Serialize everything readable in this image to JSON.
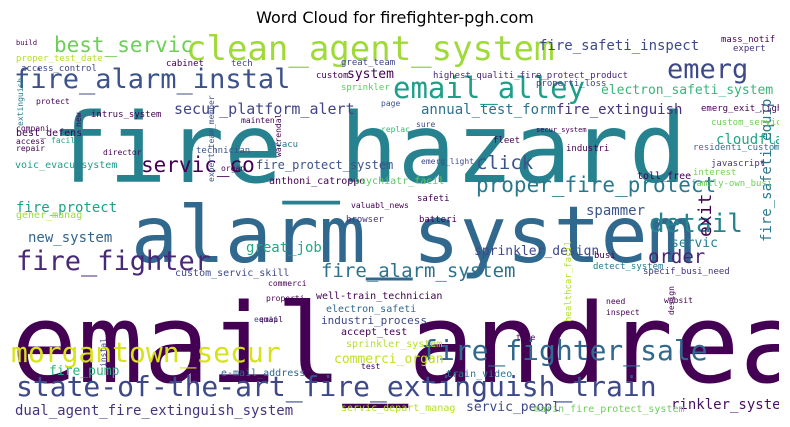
{
  "chart_data": {
    "type": "wordcloud",
    "title": "Word Cloud for firefighter-pgh.com",
    "words": [
      {
        "text": "email_andrea",
        "color": "#440154"
      },
      {
        "text": "fire_hazard",
        "color": "#26828e"
      },
      {
        "text": "alarm_system",
        "color": "#31688e"
      },
      {
        "text": "clean_agent_system",
        "color": "#a0da39"
      },
      {
        "text": "email_alley",
        "color": "#1f9e89"
      },
      {
        "text": "state-of-the-art_fire_extinguish_train",
        "color": "#3e4989"
      },
      {
        "text": "morgantown_secur",
        "color": "#d8e219"
      },
      {
        "text": "fire_fighter_sale",
        "color": "#31688e"
      },
      {
        "text": "fire_alarm_instal",
        "color": "#3b528b"
      },
      {
        "text": "fire_fighter",
        "color": "#482878"
      },
      {
        "text": "emerg",
        "color": "#3e4989"
      },
      {
        "text": "detail",
        "color": "#25858e"
      },
      {
        "text": "proper_fire_protect",
        "color": "#2a788e"
      },
      {
        "text": "best_servic",
        "color": "#6ece58"
      },
      {
        "text": "servic_co",
        "color": "#440154"
      },
      {
        "text": "fire_alarm_system",
        "color": "#2c728e"
      },
      {
        "text": "dual_agent_fire_extinguish_system",
        "color": "#46337e"
      },
      {
        "text": "fire_safeti_inspect",
        "color": "#3e4989"
      },
      {
        "text": "click",
        "color": "#3b528b"
      },
      {
        "text": "order",
        "color": "#482475"
      },
      {
        "text": "secur_platform_alert",
        "color": "#414487"
      },
      {
        "text": "annual_test_form",
        "color": "#2c728e"
      },
      {
        "text": "fire_extinguish",
        "color": "#46327e"
      },
      {
        "text": "electron_safeti_system",
        "color": "#35b779"
      },
      {
        "text": "cloudflar",
        "color": "#20a486"
      },
      {
        "text": "exit",
        "color": "#440154"
      },
      {
        "text": "fire_safeti_equip",
        "color": "#2a788e"
      },
      {
        "text": "sprinkler_design",
        "color": "#3e4989"
      },
      {
        "text": "great_job",
        "color": "#22a884"
      },
      {
        "text": "new_system",
        "color": "#33638d"
      },
      {
        "text": "fire_protect",
        "color": "#1fa187"
      },
      {
        "text": "spammer",
        "color": "#3b528b"
      },
      {
        "text": "servic",
        "color": "#277f8e"
      },
      {
        "text": "system",
        "color": "#440154"
      },
      {
        "text": "commerci_organ",
        "color": "#c2df23"
      },
      {
        "text": "fire_pump",
        "color": "#2db27d"
      },
      {
        "text": "servic_peopl",
        "color": "#3e4989"
      },
      {
        "text": "rinkler_system",
        "color": "#471063"
      },
      {
        "text": "fire_protect_system",
        "color": "#3b528b"
      },
      {
        "text": "custom_servic_skill",
        "color": "#3e4989"
      },
      {
        "text": "well-train_technician",
        "color": "#440154"
      },
      {
        "text": "electron_safeti",
        "color": "#31688e"
      },
      {
        "text": "industri_process",
        "color": "#3e4989"
      },
      {
        "text": "accept_test",
        "color": "#440154"
      },
      {
        "text": "sprinkler_system",
        "color": "#b5de2b"
      },
      {
        "text": "train_video",
        "color": "#2a788e"
      },
      {
        "text": "servic_depart_manag",
        "color": "#b5de2b"
      },
      {
        "text": "marin_fire_protect_system",
        "color": "#6ece58"
      },
      {
        "text": "e-mail_address",
        "color": "#31688e"
      },
      {
        "text": "anthoni_catroppo",
        "color": "#440154"
      },
      {
        "text": "psychiatr_facil",
        "color": "#5ec962"
      },
      {
        "text": "voic_evacu_system",
        "color": "#1f9e89"
      },
      {
        "text": "gener_manag",
        "color": "#9fda3a"
      },
      {
        "text": "best_defens",
        "color": "#440154"
      },
      {
        "text": "expert_team_member",
        "color": "#3b528b"
      },
      {
        "text": "emerg_exit_light",
        "color": "#440154"
      },
      {
        "text": "residenti_custom",
        "color": "#2a788e"
      },
      {
        "text": "javascript",
        "color": "#46337e"
      },
      {
        "text": "toll_free",
        "color": "#440154"
      },
      {
        "text": "family-own_busi",
        "color": "#6ece58"
      },
      {
        "text": "interest",
        "color": "#7ad151"
      },
      {
        "text": "specif_busi_need",
        "color": "#46337e"
      },
      {
        "text": "detect_system",
        "color": "#2a788e"
      },
      {
        "text": "healthcar_facil",
        "color": "#b5de2b"
      },
      {
        "text": "mass_notif",
        "color": "#440154"
      },
      {
        "text": "highest_qualiti_fire_protect_product",
        "color": "#482878"
      },
      {
        "text": "great_team",
        "color": "#414487"
      },
      {
        "text": "proper_test_date",
        "color": "#b5de2b"
      },
      {
        "text": "access_control",
        "color": "#3e4989"
      },
      {
        "text": "extinguish",
        "color": "#277f8e"
      },
      {
        "text": "intrus_system",
        "color": "#440154"
      },
      {
        "text": "properti_loss",
        "color": "#414487"
      },
      {
        "text": "custom_servic",
        "color": "#6ece58"
      },
      {
        "text": "expert",
        "color": "#46337e"
      },
      {
        "text": "sprinkler",
        "color": "#5ec962"
      },
      {
        "text": "cabinet",
        "color": "#440154"
      },
      {
        "text": "tech",
        "color": "#3e4989"
      },
      {
        "text": "custom",
        "color": "#440154"
      },
      {
        "text": "protect",
        "color": "#440154"
      },
      {
        "text": "page",
        "color": "#3b528b"
      },
      {
        "text": "sure",
        "color": "#3e4989"
      },
      {
        "text": "compani",
        "color": "#440154"
      },
      {
        "text": "facil",
        "color": "#20a486"
      },
      {
        "text": "director",
        "color": "#440154"
      },
      {
        "text": "mainten",
        "color": "#440154"
      },
      {
        "text": "replac",
        "color": "#35b779"
      },
      {
        "text": "evacu",
        "color": "#2a788e"
      },
      {
        "text": "warrendal",
        "color": "#440154"
      },
      {
        "text": "industri",
        "color": "#440154"
      },
      {
        "text": "fleet",
        "color": "#440154"
      },
      {
        "text": "technician",
        "color": "#3b528b"
      },
      {
        "text": "organ",
        "color": "#440154"
      },
      {
        "text": "emerg_light",
        "color": "#3e4989"
      },
      {
        "text": "valuabl_news",
        "color": "#440154"
      },
      {
        "text": "browser",
        "color": "#46337e"
      },
      {
        "text": "safeti",
        "color": "#440154"
      },
      {
        "text": "batteri",
        "color": "#440154"
      },
      {
        "text": "busi",
        "color": "#440154"
      },
      {
        "text": "commerci",
        "color": "#440154"
      },
      {
        "text": "properti",
        "color": "#440154"
      },
      {
        "text": "equip",
        "color": "#3e4989"
      },
      {
        "text": "email",
        "color": "#440154"
      },
      {
        "text": "instal",
        "color": "#3b528b"
      },
      {
        "text": "need",
        "color": "#440154"
      },
      {
        "text": "inspect",
        "color": "#440154"
      },
      {
        "text": "design",
        "color": "#440154"
      },
      {
        "text": "websit",
        "color": "#440154"
      },
      {
        "text": "time",
        "color": "#440154"
      },
      {
        "text": "test",
        "color": "#440154"
      },
      {
        "text": "access",
        "color": "#440154"
      },
      {
        "text": "repair",
        "color": "#440154"
      },
      {
        "text": "secur_system",
        "color": "#440154"
      },
      {
        "text": "new",
        "color": "#440154"
      },
      {
        "text": "build",
        "color": "#440154"
      }
    ]
  }
}
